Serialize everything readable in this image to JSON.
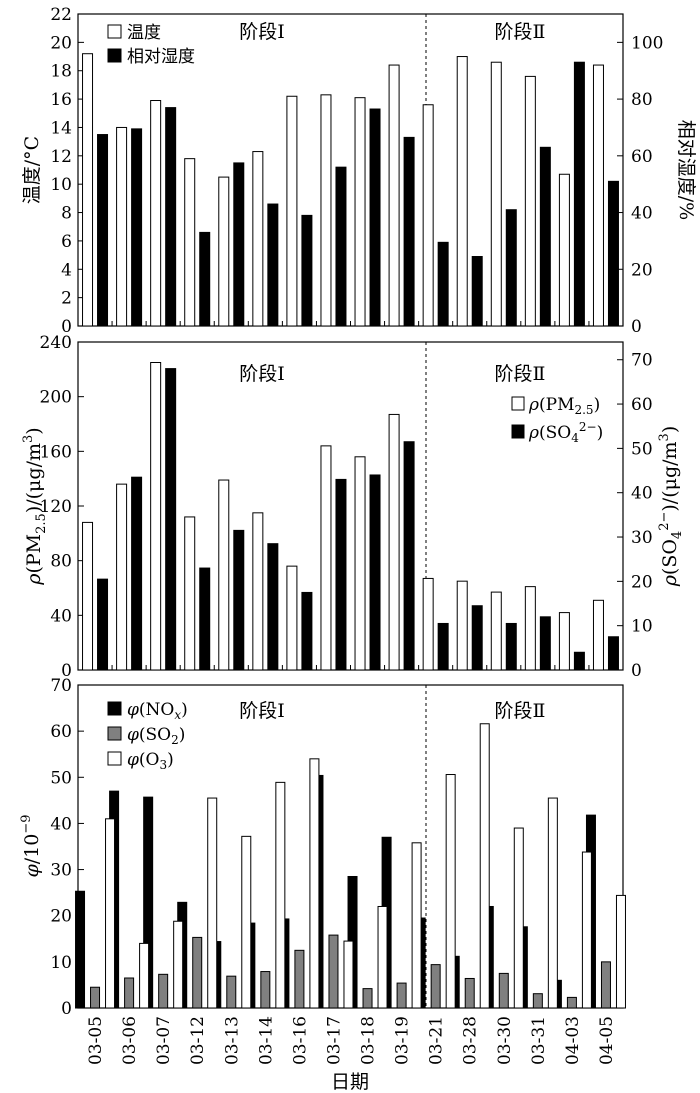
{
  "dates": [
    "03-05",
    "03-06",
    "03-07",
    "03-12",
    "03-13",
    "03-14",
    "03-16",
    "03-17",
    "03-18",
    "03-19",
    "03-21",
    "03-28",
    "03-30",
    "03-31",
    "04-03",
    "04-05"
  ],
  "xlabel": "日期",
  "stage_labels": [
    "阶段Ⅰ",
    "阶段Ⅱ"
  ],
  "chart_data": [
    {
      "type": "bar",
      "panel": "top",
      "ylabel_left": "温度/°C",
      "ylabel_right": "相对湿度/%",
      "ylim_left": [
        0,
        22
      ],
      "ylim_right": [
        0,
        110
      ],
      "yticks_left": [
        0,
        2,
        4,
        6,
        8,
        10,
        12,
        14,
        16,
        18,
        20,
        22
      ],
      "yticks_right": [
        0,
        20,
        40,
        60,
        80,
        100
      ],
      "legend_position": "top-left",
      "series": [
        {
          "name": "温度",
          "axis": "left",
          "color": "#ffffff",
          "values": [
            19.2,
            14.0,
            15.9,
            11.8,
            10.5,
            12.3,
            16.2,
            16.3,
            16.1,
            18.4,
            15.6,
            19.0,
            18.6,
            17.6,
            10.7,
            18.4
          ]
        },
        {
          "name": "相对湿度",
          "axis": "right",
          "color": "#000000",
          "values": [
            67.5,
            69.5,
            77.0,
            33.0,
            57.5,
            43.0,
            39.0,
            56.0,
            76.5,
            66.5,
            29.5,
            24.5,
            41.0,
            63.0,
            93.0,
            51.0
          ]
        }
      ]
    },
    {
      "type": "bar",
      "panel": "middle",
      "ylabel_left": "ρ(PM2.5)/(μg/m3)",
      "ylabel_right": "ρ(SO42−)/(μg/m3)",
      "ylim_left": [
        0,
        240
      ],
      "ylim_right": [
        0,
        74
      ],
      "yticks_left": [
        0,
        40,
        80,
        120,
        160,
        200,
        240
      ],
      "yticks_right": [
        0,
        10,
        20,
        30,
        40,
        50,
        60,
        70
      ],
      "legend_position": "top-right",
      "series": [
        {
          "name": "ρ(PM2.5)",
          "axis": "left",
          "color": "#ffffff",
          "values": [
            108,
            136,
            225,
            112,
            139,
            115,
            76,
            164,
            156,
            187,
            67,
            65,
            57,
            61,
            42,
            51
          ]
        },
        {
          "name": "ρ(SO42−)",
          "axis": "right",
          "color": "#000000",
          "values": [
            20.5,
            43.5,
            68.0,
            23.0,
            31.5,
            28.5,
            17.5,
            43.0,
            44.0,
            51.5,
            10.5,
            14.5,
            10.5,
            12.0,
            4.0,
            7.5
          ]
        }
      ]
    },
    {
      "type": "bar",
      "panel": "bottom",
      "ylabel_left": "φ/10−9",
      "ylim_left": [
        0,
        70
      ],
      "yticks_left": [
        0,
        10,
        20,
        30,
        40,
        50,
        60,
        70
      ],
      "legend_position": "top-left",
      "series": [
        {
          "name": "φ(NOx)",
          "axis": "left",
          "color": "#000000",
          "values": [
            25.3,
            47.0,
            45.7,
            22.9,
            14.4,
            18.4,
            19.3,
            50.4,
            28.5,
            37.0,
            19.5,
            11.2,
            22.0,
            17.6,
            6.0,
            41.8
          ]
        },
        {
          "name": "φ(SO2)",
          "axis": "left",
          "color": "#808080",
          "values": [
            4.5,
            6.5,
            7.3,
            15.3,
            6.9,
            7.9,
            12.5,
            15.8,
            4.2,
            5.4,
            9.4,
            6.4,
            7.5,
            3.1,
            2.3,
            10.0
          ]
        },
        {
          "name": "φ(O3)",
          "axis": "left",
          "color": "#ffffff",
          "values": [
            41.0,
            14.0,
            18.8,
            45.5,
            37.2,
            48.9,
            54.0,
            14.5,
            22.0,
            35.8,
            50.6,
            61.6,
            39.0,
            45.5,
            33.8,
            24.4
          ]
        }
      ]
    }
  ]
}
